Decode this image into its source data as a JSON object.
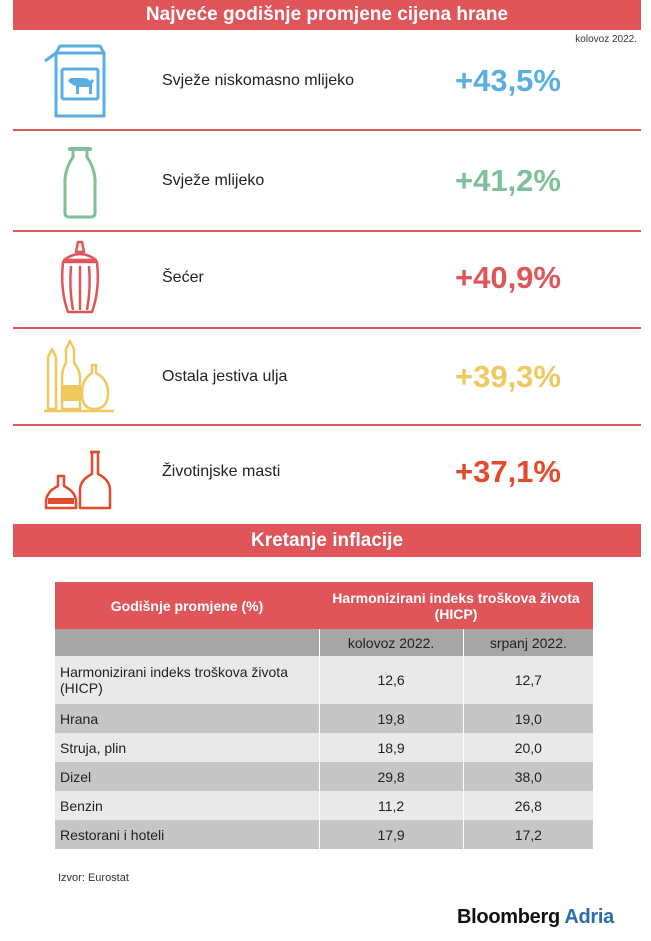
{
  "header": {
    "title": "Najveće godišnje promjene cijena hrane",
    "date": "kolovoz 2022."
  },
  "chart_data": {
    "type": "table",
    "title": "Najveće godišnje promjene cijena hrane",
    "subtitle": "kolovoz 2022.",
    "categories": [
      "Svježe niskomasno mlijeko",
      "Svježe mlijeko",
      "Šećer",
      "Ostala jestiva ulja",
      "Životinjske masti"
    ],
    "values": [
      43.5,
      41.2,
      40.9,
      39.3,
      37.1
    ],
    "display_values": [
      "+43,5%",
      "+41,2%",
      "+40,9%",
      "+39,3%",
      "+37,1%"
    ],
    "colors": [
      "#5aaee0",
      "#7fbf9a",
      "#e0555a",
      "#f0c860",
      "#e34b2c"
    ],
    "icons": [
      "milk-carton-icon",
      "milk-bottle-icon",
      "sugar-dispenser-icon",
      "oil-bottles-icon",
      "fat-bottles-icon"
    ]
  },
  "inflation": {
    "title": "Kretanje inflacije",
    "header_left": "Godišnje promjene (%)",
    "header_right": "Harmonizirani indeks troškova života (HICP)",
    "col1": "kolovoz 2022.",
    "col2": "srpanj 2022.",
    "rows": [
      {
        "label": "Harmonizirani indeks troškova života (HICP)",
        "aug": "12,6",
        "jul": "12,7"
      },
      {
        "label": "Hrana",
        "aug": "19,8",
        "jul": "19,0"
      },
      {
        "label": "Struja, plin",
        "aug": "18,9",
        "jul": "20,0"
      },
      {
        "label": "Dizel",
        "aug": "29,8",
        "jul": "38,0"
      },
      {
        "label": "Benzin",
        "aug": "11,2",
        "jul": "26,8"
      },
      {
        "label": "Restorani i hoteli",
        "aug": "17,9",
        "jul": "17,2"
      }
    ]
  },
  "footer": {
    "source": "Izvor: Eurostat",
    "logo_main": "Bloomberg",
    "logo_accent": "Adria"
  }
}
